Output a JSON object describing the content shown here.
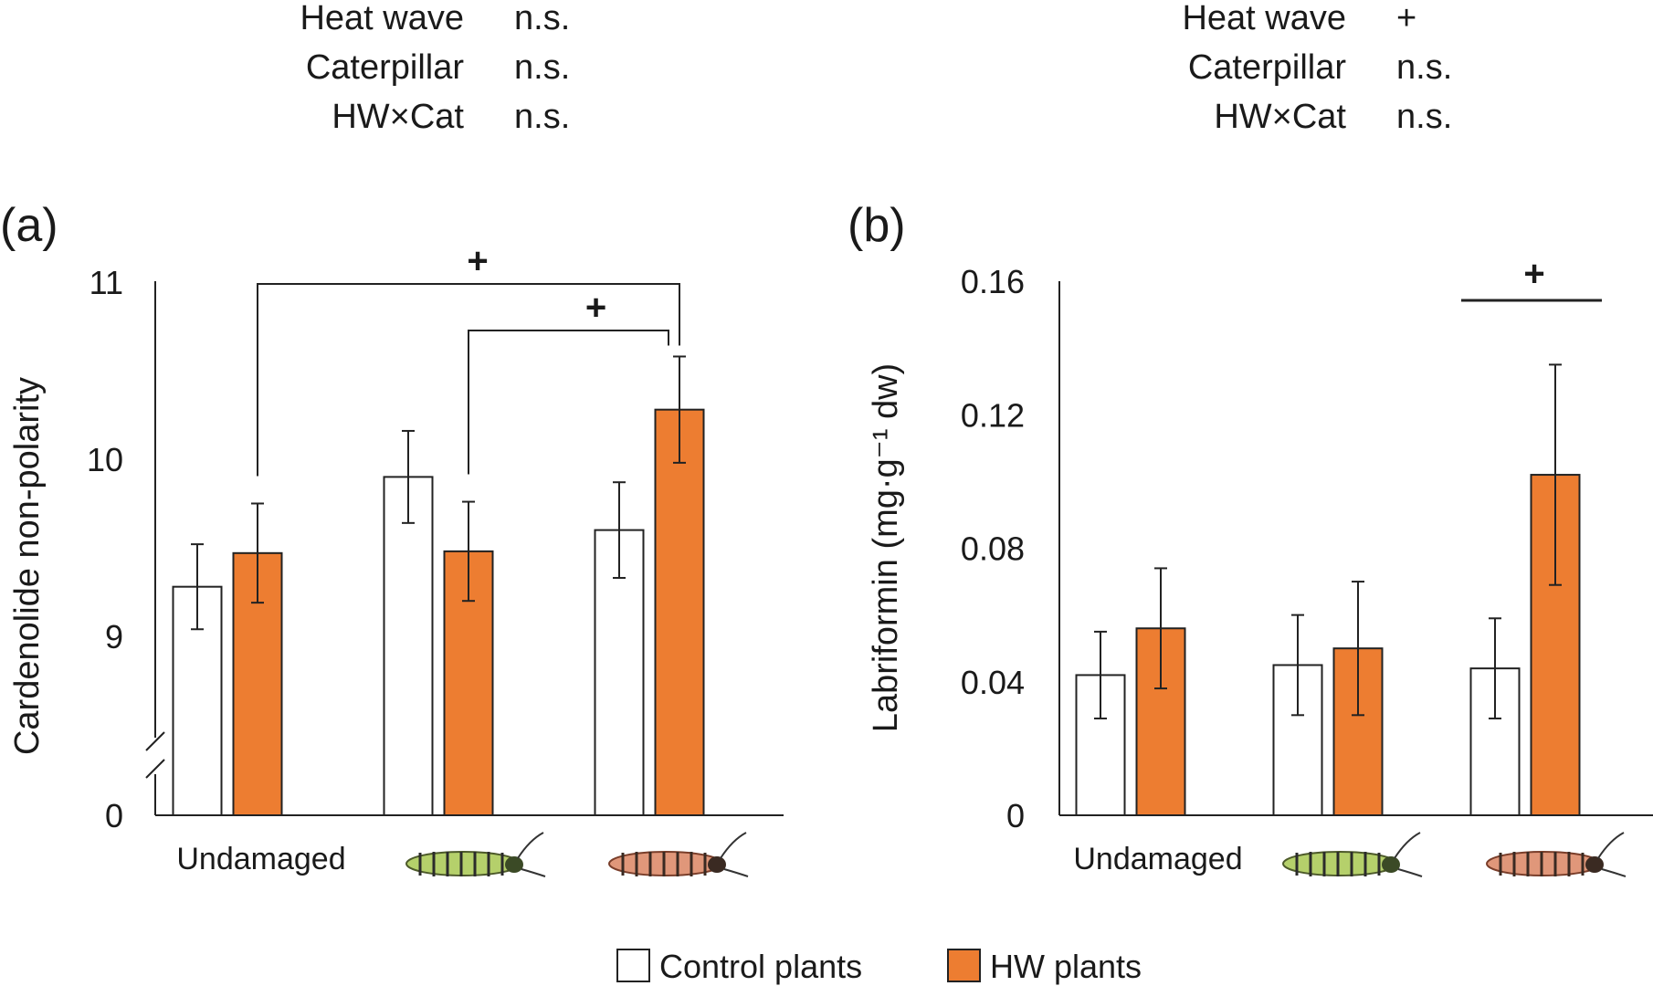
{
  "stats": [
    {
      "rows": [
        {
          "label": "Heat wave",
          "value": "n.s."
        },
        {
          "label": "Caterpillar",
          "value": "n.s."
        },
        {
          "label": "HW×Cat",
          "value": "n.s."
        }
      ]
    },
    {
      "rows": [
        {
          "label": "Heat wave",
          "value": "+"
        },
        {
          "label": "Caterpillar",
          "value": "n.s."
        },
        {
          "label": "HW×Cat",
          "value": "n.s."
        }
      ]
    }
  ],
  "colors": {
    "control": "#ffffff",
    "hw": "#ed7d31",
    "stroke": "#222222"
  },
  "legend": {
    "control_label": "Control plants",
    "hw_label": "HW plants"
  },
  "chart_data": [
    {
      "type": "bar",
      "panel_label": "(a)",
      "ylabel": "Cardenolide non-polarity",
      "categories": [
        "Undamaged",
        "green-caterpillar-icon",
        "orange-caterpillar-icon"
      ],
      "axis_break": true,
      "yticks": [
        0,
        9,
        10,
        11
      ],
      "ylim": [
        8.5,
        11
      ],
      "series": [
        {
          "name": "Control plants",
          "values": [
            9.28,
            9.9,
            9.6
          ],
          "errors": [
            0.24,
            0.26,
            0.27
          ]
        },
        {
          "name": "HW plants",
          "values": [
            9.47,
            9.48,
            10.28
          ],
          "errors": [
            0.28,
            0.28,
            0.3
          ]
        }
      ],
      "comparisons": [
        {
          "from": [
            0,
            1
          ],
          "to": [
            2,
            1
          ],
          "label": "+"
        },
        {
          "from": [
            1,
            1
          ],
          "to": [
            2,
            1
          ],
          "label": "+"
        }
      ]
    },
    {
      "type": "bar",
      "panel_label": "(b)",
      "ylabel": "Labriformin (mg·g⁻¹ dw)",
      "categories": [
        "Undamaged",
        "green-caterpillar-icon",
        "orange-caterpillar-icon"
      ],
      "yticks": [
        0,
        0.04,
        0.08,
        0.12,
        0.16
      ],
      "ylim": [
        0,
        0.16
      ],
      "series": [
        {
          "name": "Control plants",
          "values": [
            0.042,
            0.045,
            0.044
          ],
          "errors": [
            0.013,
            0.015,
            0.015
          ]
        },
        {
          "name": "HW plants",
          "values": [
            0.056,
            0.05,
            0.102
          ],
          "errors": [
            0.018,
            0.02,
            0.033
          ]
        }
      ],
      "comparisons": [
        {
          "group": 2,
          "label": "+"
        }
      ]
    }
  ]
}
